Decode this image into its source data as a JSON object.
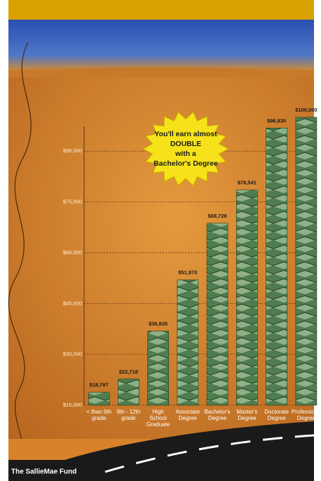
{
  "chart_data": {
    "type": "bar",
    "annotation": [
      "You'll earn almost",
      "DOUBLE",
      "with a",
      "Bachelor's Degree"
    ],
    "categories": [
      "< than 9th grade",
      "9th - 12th grade",
      "High School Graduate",
      "Associate Degree",
      "Bachelor's Degree",
      "Master's Degree",
      "Doctorate Degree",
      "Professional Degree"
    ],
    "values": [
      18787,
      22718,
      36835,
      51970,
      68728,
      78541,
      96830,
      100000
    ],
    "value_labels": [
      "$18,787",
      "$22,718",
      "$36,835",
      "$51,970",
      "$68,728",
      "$78,541",
      "$96,830",
      "$100,000"
    ],
    "color": "#4f7d4f",
    "ylim": [
      15000,
      100000
    ],
    "yticks": [
      {
        "value": 15000,
        "label": "$15,000"
      },
      {
        "value": 30000,
        "label": "$30,000"
      },
      {
        "value": 45000,
        "label": "$45,000"
      },
      {
        "value": 60000,
        "label": "$60,000"
      },
      {
        "value": 75000,
        "label": "$75,000"
      },
      {
        "value": 90000,
        "label": "$90,000"
      }
    ],
    "grid": true,
    "branding": "The SallieMae Fund"
  }
}
